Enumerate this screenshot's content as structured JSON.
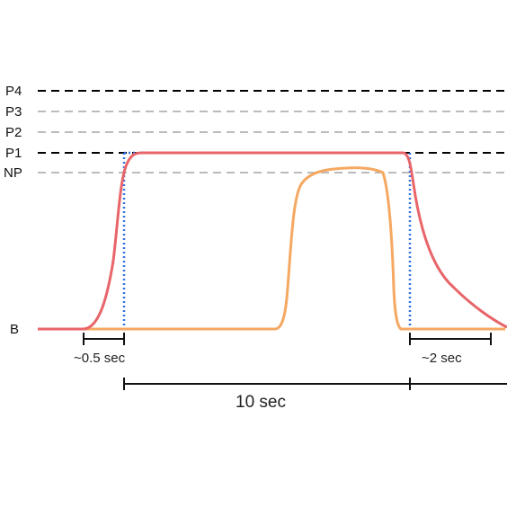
{
  "levels": {
    "p4": "P4",
    "p3": "P3",
    "p2": "P2",
    "p1": "P1",
    "np": "NP",
    "b": "B"
  },
  "annotations": {
    "rise_time": "~0.5 sec",
    "fall_time": "~2 sec",
    "duration": "10 sec"
  },
  "colors": {
    "black_dashed": "#000000",
    "gray_dashed": "#bbbbbb",
    "red_curve": "#e8656a",
    "orange_curve": "#f5a862",
    "blue_dotted": "#2f6fe0",
    "bracket": "#111111"
  }
}
